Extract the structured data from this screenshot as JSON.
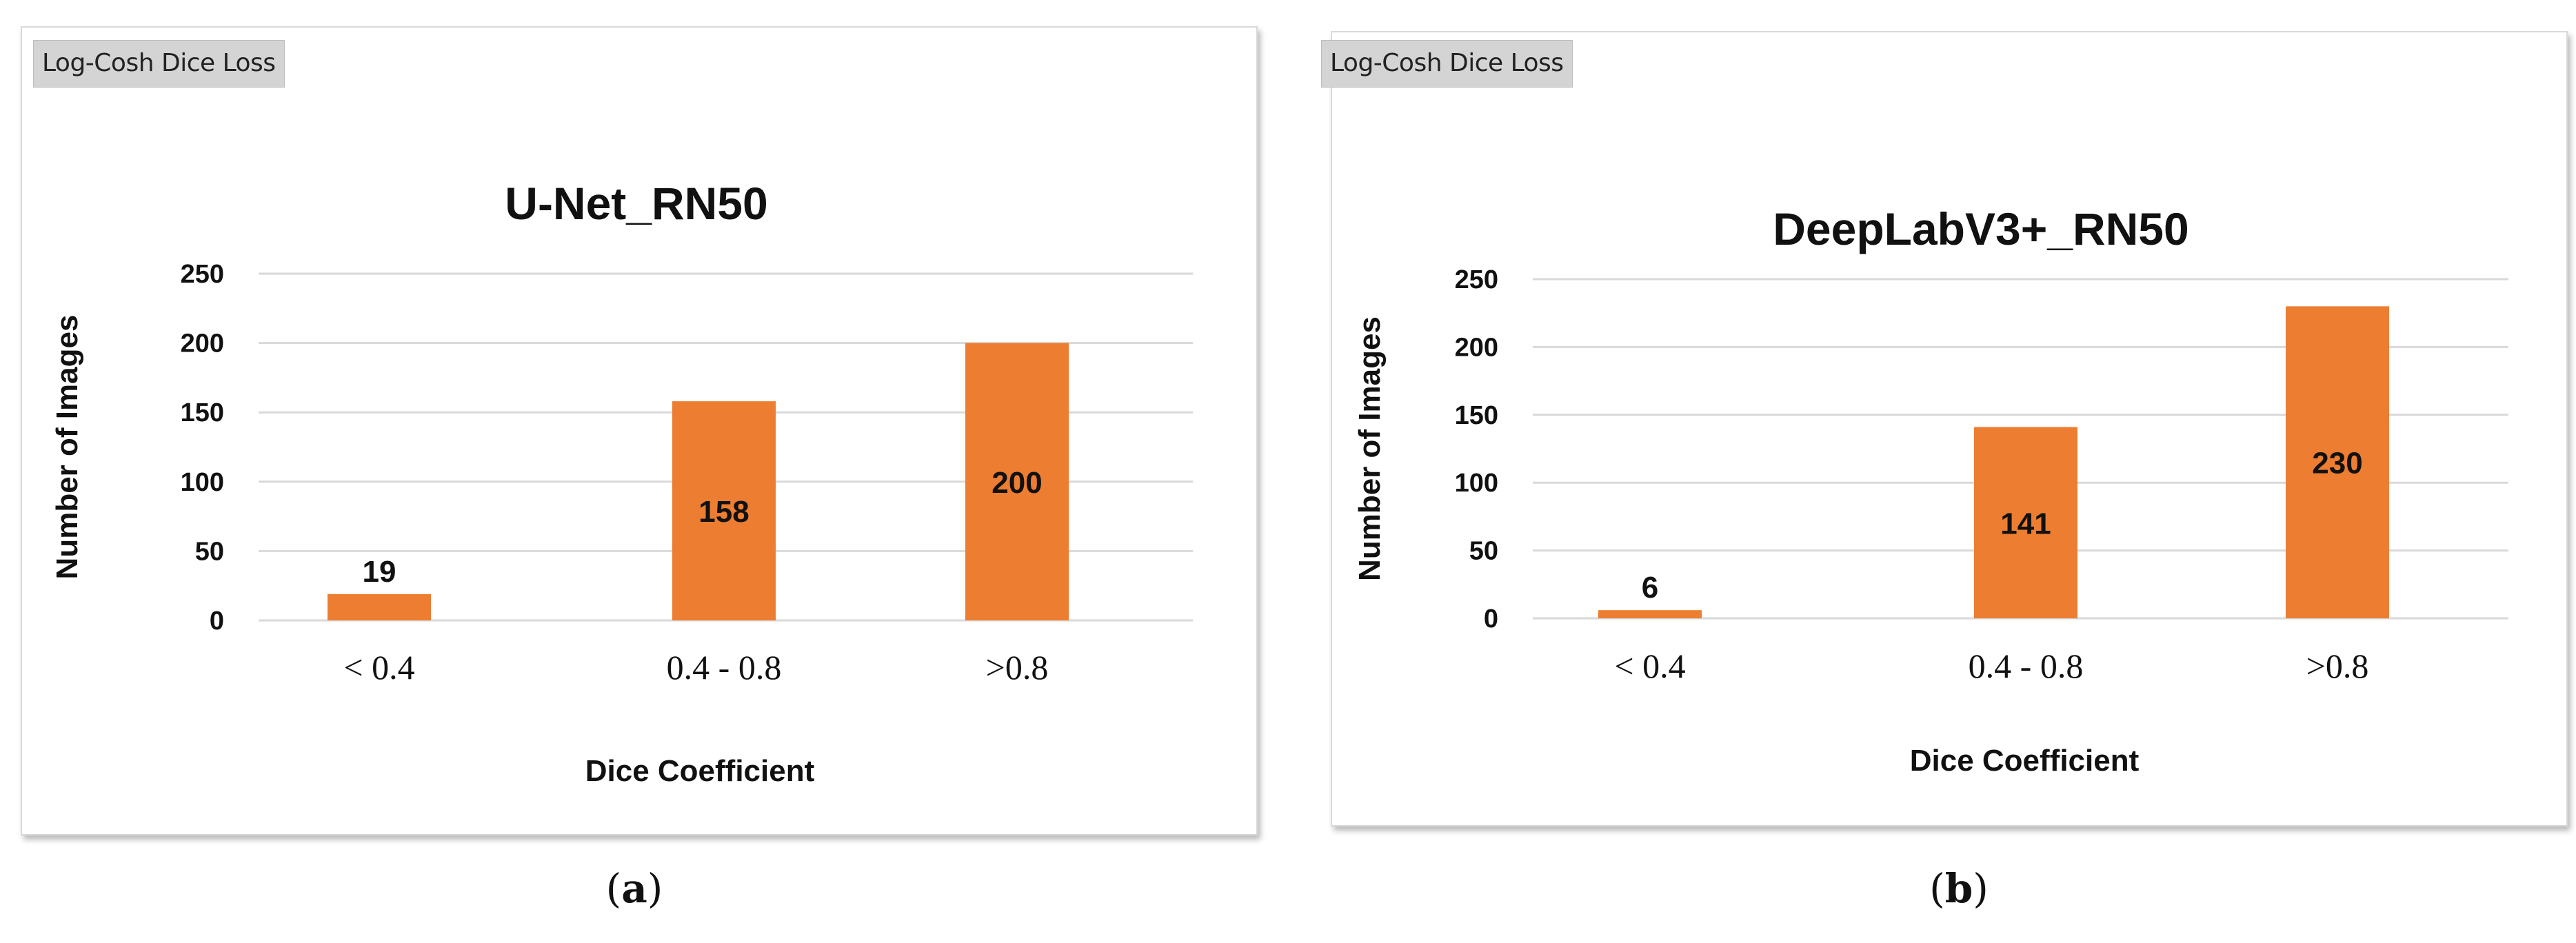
{
  "figure": {
    "colors": {
      "bar": "#ed7d31",
      "grid": "#d9d9d9",
      "text": "#111111"
    }
  },
  "chart_data": [
    {
      "type": "bar",
      "tag": "Log-Cosh Dice Loss",
      "title": "U-Net_RN50",
      "xlabel": "Dice Coefficient",
      "ylabel": "Number of Images",
      "categories": [
        "< 0.4",
        "0.4 - 0.8",
        ">0.8"
      ],
      "values": [
        19,
        158,
        200
      ],
      "data_labels": [
        "19",
        "158",
        "200"
      ],
      "yticks": [
        0,
        50,
        100,
        150,
        200,
        250
      ],
      "ytick_labels": [
        "0",
        "50",
        "100",
        "150",
        "200",
        "250"
      ],
      "ylim": [
        0,
        250
      ],
      "grid": true,
      "legend": false,
      "panel_label": {
        "open": "(",
        "letter": "a",
        "close": ")"
      }
    },
    {
      "type": "bar",
      "tag": "Log-Cosh Dice Loss",
      "title": "DeepLabV3+_RN50",
      "xlabel": "Dice Coefficient",
      "ylabel": "Number of Images",
      "categories": [
        "< 0.4",
        "0.4 - 0.8",
        ">0.8"
      ],
      "values": [
        6,
        141,
        230
      ],
      "data_labels": [
        "6",
        "141",
        "230"
      ],
      "yticks": [
        0,
        50,
        100,
        150,
        200,
        250
      ],
      "ytick_labels": [
        "0",
        "50",
        "100",
        "150",
        "200",
        "250"
      ],
      "ylim": [
        0,
        250
      ],
      "grid": true,
      "legend": false,
      "panel_label": {
        "open": "(",
        "letter": "b",
        "close": ")"
      }
    }
  ]
}
